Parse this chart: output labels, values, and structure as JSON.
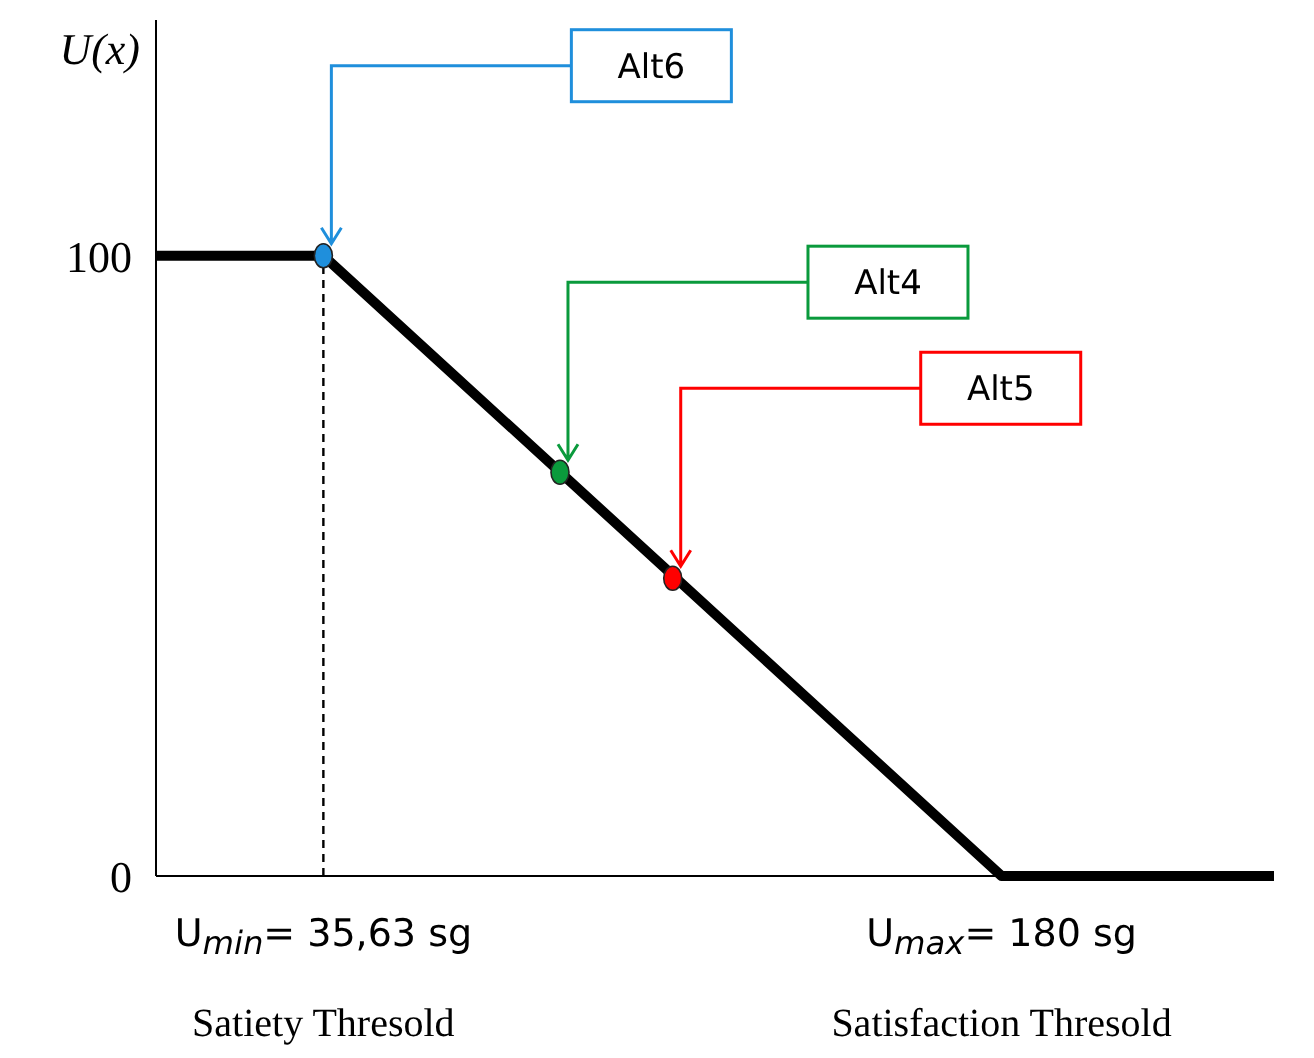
{
  "chart_data": {
    "type": "line",
    "ylabel": "U(x)",
    "xlim": [
      0,
      238
    ],
    "ylim": [
      0,
      138
    ],
    "xticks": [
      {
        "value": 35.63,
        "label": "U$_{min}$= 35,63 sg"
      },
      {
        "value": 180,
        "label": "U$_{max}$= 180 sg"
      }
    ],
    "yticks": [
      0,
      100
    ],
    "series": [
      {
        "color": "#000000",
        "x": [
          0,
          35.63,
          180,
          238
        ],
        "values": [
          100,
          100,
          0,
          0
        ]
      },
      {
        "type": "scatter",
        "marker": "circle",
        "x": [
          35.63,
          86,
          110
        ],
        "values": [
          100,
          65.1,
          48
        ],
        "colors": [
          "#1f8fdc",
          "#0a9a3c",
          "#ff0000"
        ]
      }
    ],
    "annotations": [
      "Alt6",
      "Alt4",
      "Alt5",
      "Satiety Thresold",
      "Satisfaction Thresold"
    ],
    "ref_lines": [
      {
        "axis": "x",
        "value": 35.63,
        "line_style": "dashed",
        "color": "#000000"
      }
    ]
  }
}
